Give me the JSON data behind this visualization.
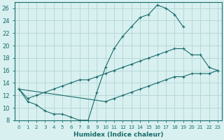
{
  "xlabel": "Humidex (Indice chaleur)",
  "background_color": "#d8f0f0",
  "grid_color": "#b8d8d8",
  "line_color": "#1a6b6b",
  "xlim": [
    -0.5,
    23.5
  ],
  "ylim": [
    8,
    27
  ],
  "xticks": [
    0,
    1,
    2,
    3,
    4,
    5,
    6,
    7,
    8,
    9,
    10,
    11,
    12,
    13,
    14,
    15,
    16,
    17,
    18,
    19,
    20,
    21,
    22,
    23
  ],
  "yticks": [
    8,
    10,
    12,
    14,
    16,
    18,
    20,
    22,
    24,
    26
  ],
  "line1_x": [
    0,
    1,
    2,
    3,
    4,
    5,
    6,
    7,
    8,
    9,
    10,
    11,
    12,
    13,
    14,
    15,
    16,
    17,
    18,
    19
  ],
  "line1_y": [
    13,
    11,
    10.5,
    9.5,
    9,
    9,
    8.5,
    8,
    8,
    12.5,
    16.5,
    19.5,
    21.5,
    23,
    24.5,
    25,
    26.5,
    26,
    25,
    23
  ],
  "line2_x": [
    0,
    1,
    2,
    3,
    4,
    5,
    6,
    7,
    8,
    9,
    10,
    11,
    12,
    13,
    14,
    15,
    16,
    17,
    18,
    19,
    20,
    21,
    22,
    23
  ],
  "line2_y": [
    13,
    11.5,
    12,
    12.5,
    13,
    13.5,
    14,
    14.5,
    14.5,
    15,
    15.5,
    16,
    16.5,
    17,
    17.5,
    18,
    18.5,
    19,
    19.5,
    19.5,
    18.5,
    18.5,
    16.5,
    16
  ],
  "line3_x": [
    0,
    10,
    11,
    12,
    13,
    14,
    15,
    16,
    17,
    18,
    19,
    20,
    21,
    22,
    23
  ],
  "line3_y": [
    13,
    11,
    11.5,
    12,
    12.5,
    13,
    13.5,
    14,
    14.5,
    15,
    15,
    15.5,
    15.5,
    15.5,
    16
  ]
}
